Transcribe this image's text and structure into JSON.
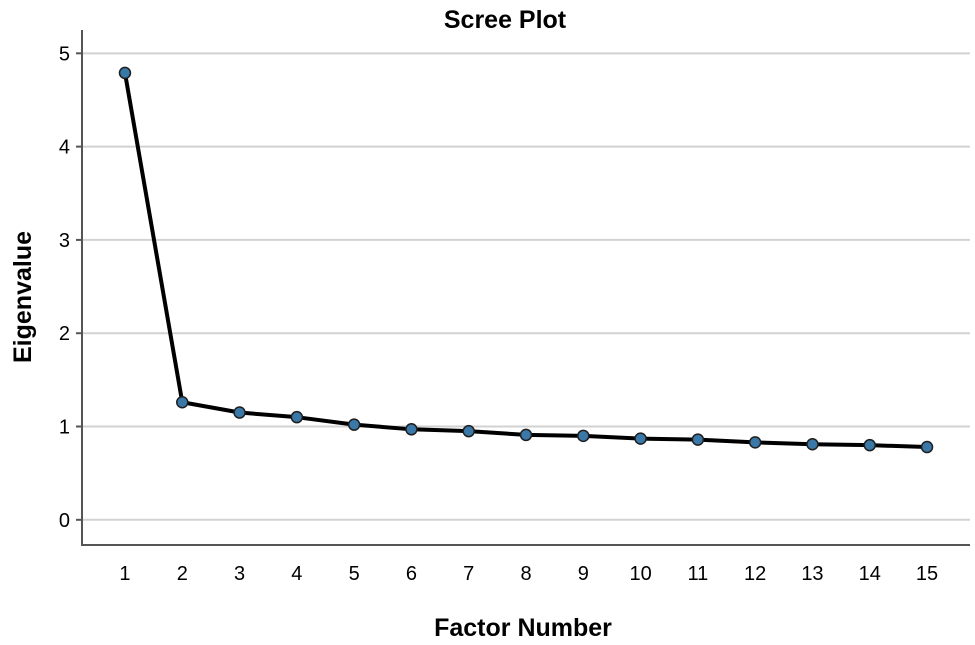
{
  "chart_data": {
    "type": "line",
    "title": "Scree Plot",
    "xlabel": "Factor Number",
    "ylabel": "Eigenvalue",
    "x": [
      1,
      2,
      3,
      4,
      5,
      6,
      7,
      8,
      9,
      10,
      11,
      12,
      13,
      14,
      15
    ],
    "x_tick_labels": [
      "1",
      "2",
      "3",
      "4",
      "5",
      "6",
      "7",
      "8",
      "9",
      "10",
      "11",
      "12",
      "13",
      "14",
      "15"
    ],
    "y_tick_labels": [
      "0",
      "1",
      "2",
      "3",
      "4",
      "5"
    ],
    "y_ticks": [
      0,
      1,
      2,
      3,
      4,
      5
    ],
    "ylim": [
      -0.27,
      5.25
    ],
    "xlim": [
      0.25,
      15.75
    ],
    "series": [
      {
        "values": [
          4.79,
          1.26,
          1.15,
          1.1,
          1.02,
          0.97,
          0.95,
          0.91,
          0.9,
          0.87,
          0.86,
          0.83,
          0.81,
          0.8,
          0.78
        ]
      }
    ],
    "grid": "horizontal",
    "line_color": "#000000",
    "marker_color": "#3a78a8",
    "grid_color": "#d2d2d2"
  }
}
